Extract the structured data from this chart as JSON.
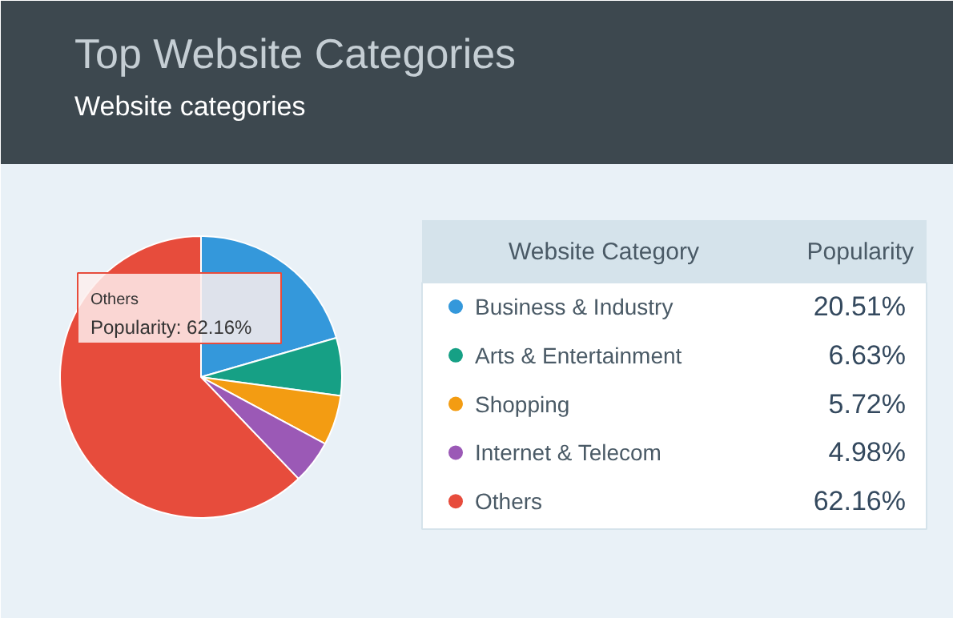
{
  "chart_data": {
    "type": "pie",
    "title": "Top Website Categories",
    "subtitle": "Website categories",
    "legend_title": "Website Category",
    "ylabel": "Popularity",
    "categories": [
      "Business & Industry",
      "Arts & Entertainment",
      "Shopping",
      "Internet & Telecom",
      "Others"
    ],
    "values": [
      20.51,
      6.63,
      5.72,
      4.98,
      62.16
    ],
    "colors": [
      "#3498db",
      "#16a085",
      "#f39c12",
      "#9b59b6",
      "#e74c3c"
    ],
    "value_labels": [
      "20.51%",
      "6.63%",
      "5.72%",
      "4.98%",
      "62.16%"
    ],
    "annotations": [
      "Others",
      "Popularity: 62.16%"
    ],
    "legend": "right"
  }
}
